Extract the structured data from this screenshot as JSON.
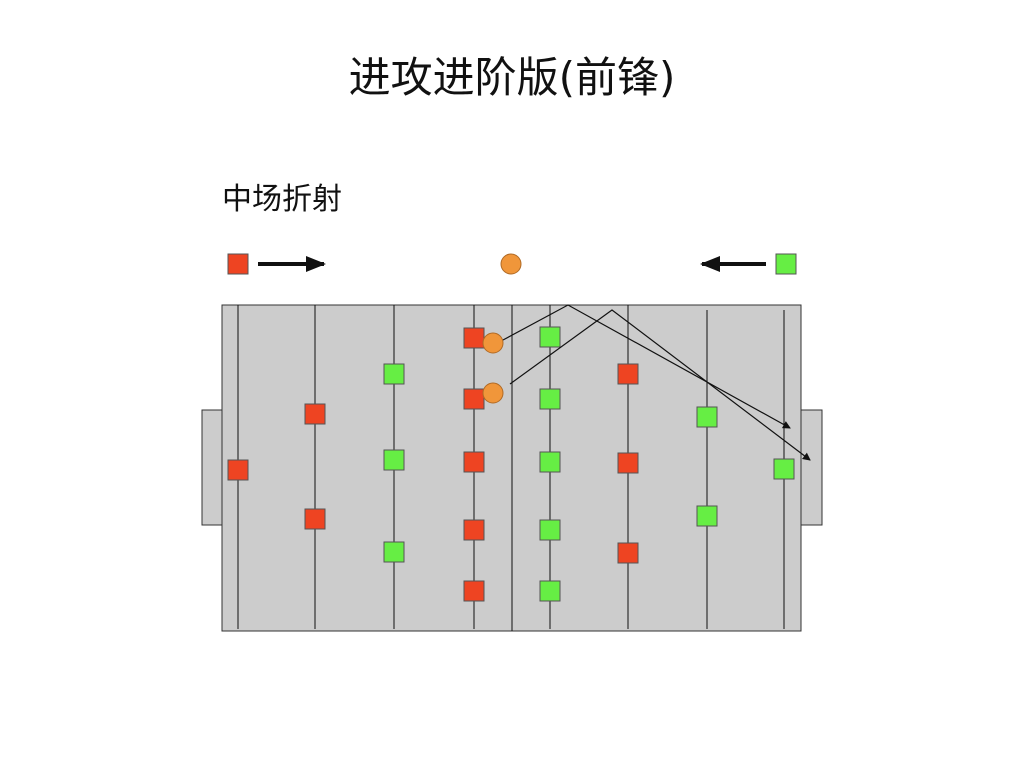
{
  "title": "进攻进阶版(前锋)",
  "subtitle": "中场折射",
  "colors": {
    "team_red": "#ee4422",
    "team_green": "#66ee44",
    "ball": "#f0963a",
    "pitch": "#cccccc",
    "line": "#111111"
  },
  "legend": [
    {
      "team": "red",
      "direction": "right",
      "icon": "right-arrow"
    },
    {
      "team": "green",
      "direction": "left",
      "icon": "left-arrow"
    }
  ],
  "rods": [
    {
      "team": "red",
      "players": 1
    },
    {
      "team": "red",
      "players": 2
    },
    {
      "team": "green",
      "players": 3
    },
    {
      "team": "red",
      "players": 5
    },
    {
      "team": "green",
      "players": 5
    },
    {
      "team": "red",
      "players": 3
    },
    {
      "team": "green",
      "players": 2
    },
    {
      "team": "green",
      "players": 1
    }
  ],
  "balls": 3,
  "shot_arrows": 2
}
